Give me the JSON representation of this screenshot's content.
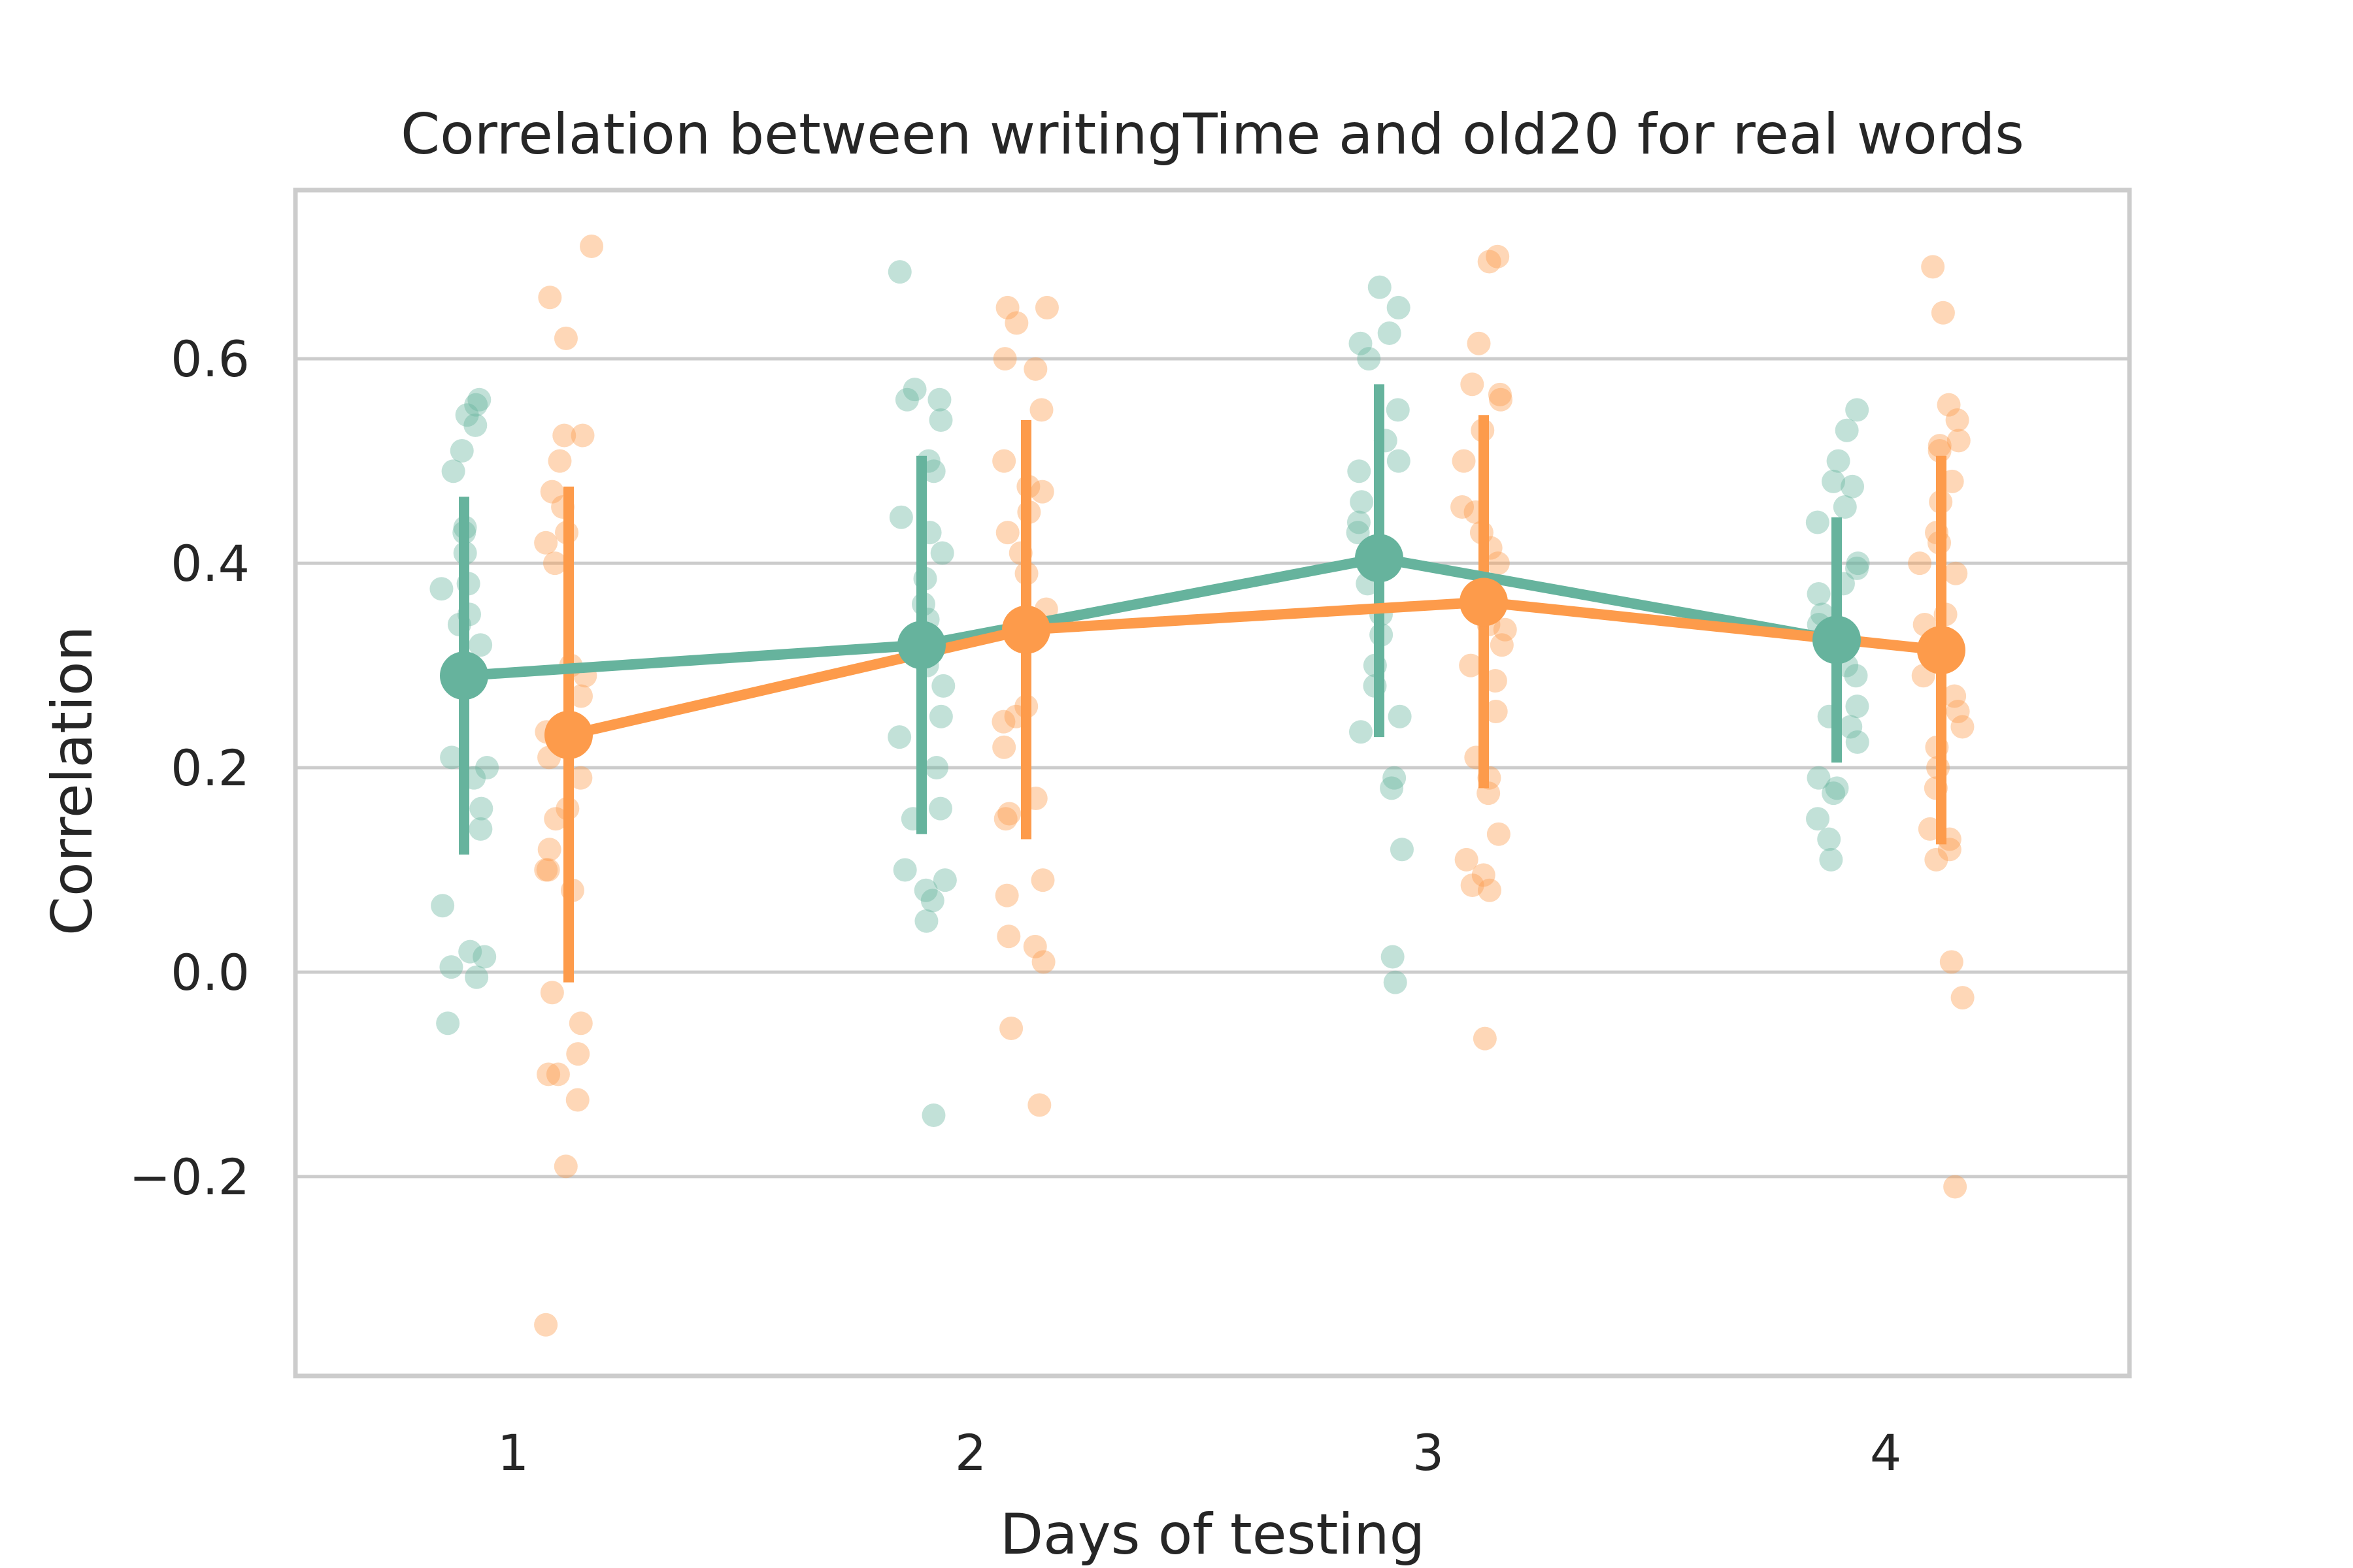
{
  "chart_data": {
    "type": "scatter",
    "title": "Correlation between writingTime and old20 for real words",
    "xlabel": "Days of testing",
    "ylabel": "Correlation",
    "categories": [
      "1",
      "2",
      "3",
      "4"
    ],
    "ylim": [
      -0.395,
      0.765
    ],
    "yticks": [
      -0.2,
      0.0,
      0.2,
      0.4,
      0.6
    ],
    "ytick_labels": [
      "−0.2",
      "0.0",
      "0.2",
      "0.4",
      "0.6"
    ],
    "grid": "horizontal",
    "legend": "none",
    "series": [
      {
        "color": "#66b39d",
        "means": [
          0.29,
          0.32,
          0.405,
          0.325
        ],
        "ci_low": [
          0.115,
          0.135,
          0.23,
          0.205
        ],
        "ci_high": [
          0.465,
          0.505,
          0.575,
          0.445
        ],
        "points": [
          [
            0.535,
            0.545,
            0.51,
            0.49,
            0.56,
            0.555,
            0.43,
            0.41,
            0.435,
            0.375,
            0.38,
            0.35,
            0.34,
            0.32,
            0.3,
            0.295,
            0.21,
            0.2,
            0.19,
            0.16,
            0.14,
            0.065,
            0.02,
            0.015,
            0.005,
            -0.005,
            -0.05
          ],
          [
            0.685,
            0.57,
            0.56,
            0.56,
            0.54,
            0.5,
            0.49,
            0.445,
            0.43,
            0.41,
            0.385,
            0.36,
            0.345,
            0.3,
            0.28,
            0.25,
            0.23,
            0.2,
            0.16,
            0.15,
            0.1,
            0.09,
            0.08,
            0.07,
            0.05,
            -0.14
          ],
          [
            0.67,
            0.65,
            0.625,
            0.615,
            0.6,
            0.55,
            0.52,
            0.5,
            0.49,
            0.46,
            0.44,
            0.43,
            0.38,
            0.35,
            0.33,
            0.3,
            0.28,
            0.25,
            0.235,
            0.19,
            0.18,
            0.12,
            0.015,
            -0.01
          ],
          [
            0.55,
            0.53,
            0.5,
            0.48,
            0.475,
            0.455,
            0.44,
            0.4,
            0.395,
            0.38,
            0.37,
            0.35,
            0.34,
            0.3,
            0.29,
            0.26,
            0.25,
            0.24,
            0.225,
            0.19,
            0.18,
            0.175,
            0.15,
            0.13,
            0.11
          ]
        ]
      },
      {
        "color": "#fd9b4b",
        "means": [
          0.232,
          0.335,
          0.362,
          0.315
        ],
        "ci_low": [
          -0.01,
          0.13,
          0.18,
          0.125
        ],
        "ci_high": [
          0.475,
          0.54,
          0.545,
          0.505
        ],
        "points": [
          [
            0.71,
            0.66,
            0.62,
            0.525,
            0.525,
            0.5,
            0.47,
            0.455,
            0.43,
            0.42,
            0.4,
            0.3,
            0.29,
            0.27,
            0.235,
            0.21,
            0.19,
            0.16,
            0.15,
            0.12,
            0.1,
            0.1,
            0.08,
            -0.02,
            -0.05,
            -0.08,
            -0.1,
            -0.1,
            -0.125,
            -0.19,
            -0.345
          ],
          [
            0.65,
            0.65,
            0.635,
            0.6,
            0.59,
            0.55,
            0.5,
            0.475,
            0.47,
            0.45,
            0.43,
            0.41,
            0.39,
            0.355,
            0.34,
            0.26,
            0.25,
            0.245,
            0.22,
            0.17,
            0.155,
            0.15,
            0.09,
            0.075,
            0.035,
            0.025,
            0.01,
            -0.055,
            -0.13
          ],
          [
            0.7,
            0.695,
            0.615,
            0.575,
            0.565,
            0.56,
            0.53,
            0.5,
            0.455,
            0.45,
            0.43,
            0.415,
            0.4,
            0.34,
            0.335,
            0.32,
            0.3,
            0.285,
            0.255,
            0.21,
            0.19,
            0.175,
            0.135,
            0.11,
            0.095,
            0.085,
            0.08,
            -0.065
          ],
          [
            0.69,
            0.645,
            0.555,
            0.54,
            0.52,
            0.515,
            0.51,
            0.48,
            0.46,
            0.43,
            0.42,
            0.4,
            0.39,
            0.35,
            0.34,
            0.29,
            0.27,
            0.255,
            0.24,
            0.22,
            0.2,
            0.18,
            0.14,
            0.13,
            0.12,
            0.11,
            0.01,
            -0.025,
            -0.21
          ]
        ]
      }
    ]
  }
}
